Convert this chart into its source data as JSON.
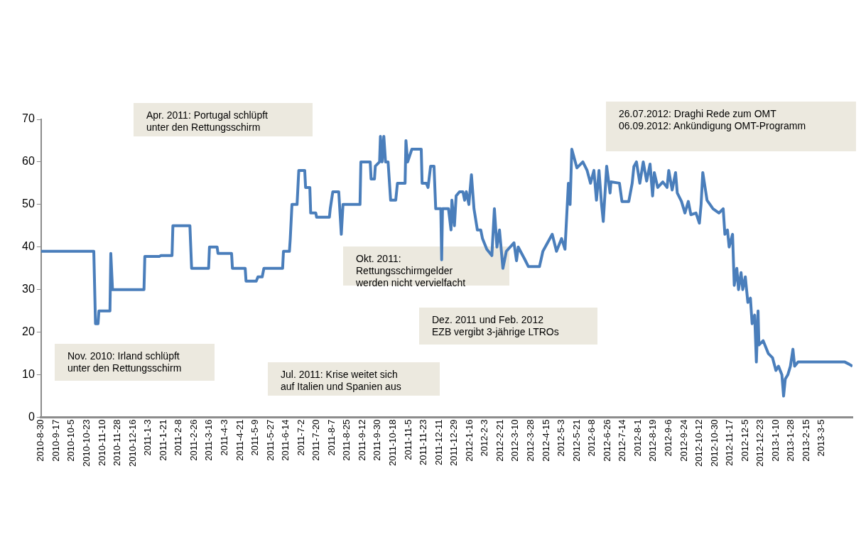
{
  "chart_data": {
    "type": "line",
    "color": "#4a7ebb",
    "x": [
      "2010-08-30",
      "2010-10-31",
      "2010-11-02",
      "2010-11-05",
      "2010-11-06",
      "2010-11-19",
      "2010-11-20",
      "2010-11-22",
      "2010-12-29",
      "2010-12-30",
      "2011-01-16",
      "2011-01-18",
      "2011-01-31",
      "2011-02-01",
      "2011-02-21",
      "2011-02-23",
      "2011-03-15",
      "2011-03-16",
      "2011-03-25",
      "2011-03-26",
      "2011-04-11",
      "2011-04-12",
      "2011-04-27",
      "2011-04-28",
      "2011-05-10",
      "2011-05-12",
      "2011-05-17",
      "2011-05-19",
      "2011-06-10",
      "2011-06-11",
      "2011-06-18",
      "2011-06-19",
      "2011-06-21",
      "2011-06-27",
      "2011-06-29",
      "2011-07-06",
      "2011-07-07",
      "2011-07-12",
      "2011-07-13",
      "2011-07-19",
      "2011-07-20",
      "2011-08-04",
      "2011-08-05",
      "2011-08-08",
      "2011-08-15",
      "2011-08-18",
      "2011-08-20",
      "2011-09-09",
      "2011-09-10",
      "2011-09-21",
      "2011-09-22",
      "2011-09-26",
      "2011-09-27",
      "2011-10-02",
      "2011-10-03",
      "2011-10-05",
      "2011-10-07",
      "2011-10-09",
      "2011-10-12",
      "2011-10-15",
      "2011-10-21",
      "2011-10-23",
      "2011-11-01",
      "2011-11-02",
      "2011-11-04",
      "2011-11-09",
      "2011-11-20",
      "2011-11-21",
      "2011-11-26",
      "2011-11-28",
      "2011-12-01",
      "2011-12-05",
      "2011-12-07",
      "2011-12-13",
      "2011-12-14",
      "2011-12-15",
      "2011-12-22",
      "2011-12-25",
      "2011-12-26",
      "2011-12-29",
      "2011-12-31",
      "2012-01-04",
      "2012-01-08",
      "2012-01-10",
      "2012-01-12",
      "2012-01-15",
      "2012-01-18",
      "2012-01-21",
      "2012-01-25",
      "2012-01-29",
      "2012-01-31",
      "2012-02-05",
      "2012-02-11",
      "2012-02-14",
      "2012-02-17",
      "2012-02-20",
      "2012-02-24",
      "2012-02-28",
      "2012-03-08",
      "2012-03-11",
      "2012-03-13",
      "2012-03-21",
      "2012-03-25",
      "2012-04-07",
      "2012-04-11",
      "2012-04-22",
      "2012-04-27",
      "2012-05-03",
      "2012-05-07",
      "2012-05-11",
      "2012-05-13",
      "2012-05-15",
      "2012-05-21",
      "2012-05-28",
      "2012-06-02",
      "2012-06-06",
      "2012-06-10",
      "2012-06-13",
      "2012-06-16",
      "2012-06-19",
      "2012-06-21",
      "2012-06-25",
      "2012-06-29",
      "2012-06-30",
      "2012-07-10",
      "2012-07-13",
      "2012-07-21",
      "2012-07-25",
      "2012-07-27",
      "2012-07-30",
      "2012-08-03",
      "2012-08-07",
      "2012-08-11",
      "2012-08-15",
      "2012-08-18",
      "2012-08-20",
      "2012-08-24",
      "2012-08-30",
      "2012-09-04",
      "2012-09-06",
      "2012-09-10",
      "2012-09-14",
      "2012-09-16",
      "2012-09-21",
      "2012-09-25",
      "2012-09-29",
      "2012-10-02",
      "2012-10-08",
      "2012-10-12",
      "2012-10-14",
      "2012-10-16",
      "2012-10-21",
      "2012-10-28",
      "2012-11-04",
      "2012-11-09",
      "2012-11-11",
      "2012-11-14",
      "2012-11-16",
      "2012-11-20",
      "2012-11-22",
      "2012-11-25",
      "2012-11-27",
      "2012-11-30",
      "2012-12-02",
      "2012-12-05",
      "2012-12-08",
      "2012-12-11",
      "2012-12-13",
      "2012-12-16",
      "2012-12-18",
      "2012-12-20",
      "2012-12-21",
      "2012-12-26",
      "2012-12-30",
      "2013-01-01",
      "2013-01-06",
      "2013-01-10",
      "2013-01-13",
      "2013-01-17",
      "2013-01-19",
      "2013-01-21",
      "2013-01-24",
      "2013-01-27",
      "2013-01-30",
      "2013-02-01",
      "2013-02-05",
      "2013-02-22",
      "2013-03-11",
      "2013-04-01",
      "2013-04-06",
      "2013-04-10"
    ],
    "values": [
      39,
      39,
      22,
      22,
      25,
      25,
      38.5,
      30,
      30,
      37.8,
      37.8,
      38,
      38,
      45,
      45,
      35,
      35,
      40,
      40,
      38.5,
      38.5,
      35,
      35,
      32,
      32,
      33,
      33,
      35,
      35,
      39,
      39,
      42,
      50,
      50,
      58,
      58,
      54,
      54,
      48,
      48,
      47,
      47,
      49,
      53,
      53,
      43,
      50,
      50,
      60,
      60,
      56,
      56,
      59,
      60,
      66,
      60,
      66,
      60,
      60,
      51,
      51,
      55,
      55,
      65,
      60,
      63,
      63,
      55,
      55,
      54,
      59,
      59,
      49,
      49,
      37,
      49,
      49,
      44,
      51,
      45,
      52,
      53,
      53,
      51,
      53,
      50,
      57,
      49,
      44,
      44,
      42,
      39.5,
      38,
      49,
      40,
      44,
      35,
      39,
      41,
      36.8,
      40,
      37,
      35.4,
      35.4,
      39,
      43,
      39,
      42,
      39.5,
      55,
      50,
      63,
      58.6,
      60,
      58,
      55,
      58,
      51,
      58,
      50,
      46,
      59,
      52.7,
      55.3,
      55,
      50.7,
      50.7,
      55,
      58.9,
      60,
      55,
      60,
      55.5,
      59.5,
      52,
      57.5,
      54,
      55.3,
      54,
      58,
      53.4,
      57.5,
      52.7,
      50.7,
      48,
      50.7,
      47.6,
      48,
      45.6,
      50,
      57.5,
      51,
      49,
      48,
      49,
      43,
      44,
      40,
      43,
      31,
      35,
      30,
      34,
      30,
      33,
      27,
      28,
      22,
      24,
      13,
      25,
      17,
      18,
      16,
      15,
      14,
      11,
      12,
      10,
      5,
      9,
      10,
      12,
      16,
      12,
      13,
      13,
      13,
      13,
      12.5,
      12
    ],
    "xlim": [
      "2010-08-30",
      "2013-04-10"
    ],
    "xticks": [
      {
        "value": "2010-08-30",
        "label": "2010-8-30"
      },
      {
        "value": "2010-09-17",
        "label": "2010-9-17"
      },
      {
        "value": "2010-10-05",
        "label": "2010-10-5"
      },
      {
        "value": "2010-10-23",
        "label": "2010-10-23"
      },
      {
        "value": "2010-11-10",
        "label": "2010-11-10"
      },
      {
        "value": "2010-11-28",
        "label": "2010-11-28"
      },
      {
        "value": "2010-12-16",
        "label": "2010-12-16"
      },
      {
        "value": "2011-01-03",
        "label": "2011-1-3"
      },
      {
        "value": "2011-01-21",
        "label": "2011-1-21"
      },
      {
        "value": "2011-02-08",
        "label": "2011-2-8"
      },
      {
        "value": "2011-02-26",
        "label": "2011-2-26"
      },
      {
        "value": "2011-03-16",
        "label": "2011-3-16"
      },
      {
        "value": "2011-04-03",
        "label": "2011-4-3"
      },
      {
        "value": "2011-04-21",
        "label": "2011-4-21"
      },
      {
        "value": "2011-05-09",
        "label": "2011-5-9"
      },
      {
        "value": "2011-05-27",
        "label": "2011-5-27"
      },
      {
        "value": "2011-06-14",
        "label": "2011-6-14"
      },
      {
        "value": "2011-07-02",
        "label": "2011-7-2"
      },
      {
        "value": "2011-07-20",
        "label": "2011-7-20"
      },
      {
        "value": "2011-08-07",
        "label": "2011-8-7"
      },
      {
        "value": "2011-08-25",
        "label": "2011-8-25"
      },
      {
        "value": "2011-09-12",
        "label": "2011-9-12"
      },
      {
        "value": "2011-09-30",
        "label": "2011-9-30"
      },
      {
        "value": "2011-10-18",
        "label": "2011-10-18"
      },
      {
        "value": "2011-11-05",
        "label": "2011-11-5"
      },
      {
        "value": "2011-11-23",
        "label": "2011-11-23"
      },
      {
        "value": "2011-12-11",
        "label": "2011-12-11"
      },
      {
        "value": "2011-12-29",
        "label": "2011-12-29"
      },
      {
        "value": "2012-01-16",
        "label": "2012-1-16"
      },
      {
        "value": "2012-02-03",
        "label": "2012-2-3"
      },
      {
        "value": "2012-02-21",
        "label": "2012-2-21"
      },
      {
        "value": "2012-03-10",
        "label": "2012-3-10"
      },
      {
        "value": "2012-03-28",
        "label": "2012-3-28"
      },
      {
        "value": "2012-04-15",
        "label": "2012-4-15"
      },
      {
        "value": "2012-05-03",
        "label": "2012-5-3"
      },
      {
        "value": "2012-05-21",
        "label": "2012-5-21"
      },
      {
        "value": "2012-06-08",
        "label": "2012-6-8"
      },
      {
        "value": "2012-06-26",
        "label": "2012-6-26"
      },
      {
        "value": "2012-07-14",
        "label": "2012-7-14"
      },
      {
        "value": "2012-08-01",
        "label": "2012-8-1"
      },
      {
        "value": "2012-08-19",
        "label": "2012-8-19"
      },
      {
        "value": "2012-09-06",
        "label": "2012-9-6"
      },
      {
        "value": "2012-09-24",
        "label": "2012-9-24"
      },
      {
        "value": "2012-10-12",
        "label": "2012-10-12"
      },
      {
        "value": "2012-10-30",
        "label": "2012-10-30"
      },
      {
        "value": "2012-11-17",
        "label": "2012-11-17"
      },
      {
        "value": "2012-12-05",
        "label": "2012-12-5"
      },
      {
        "value": "2012-12-23",
        "label": "2012-12-23"
      },
      {
        "value": "2013-01-10",
        "label": "2013-1-10"
      },
      {
        "value": "2013-01-28",
        "label": "2013-1-28"
      },
      {
        "value": "2013-02-15",
        "label": "2013-2-15"
      },
      {
        "value": "2013-03-05",
        "label": "2013-3-5"
      }
    ],
    "ylim": [
      0,
      70
    ],
    "yticks": [
      0,
      10,
      20,
      30,
      40,
      50,
      60,
      70
    ],
    "grid": false,
    "legend": false,
    "marker": "none",
    "line_style": "solid",
    "annotations": [
      "Apr. 2011: Portugal schlüpft\nunter den Rettungsschirm",
      "26.07.2012: Draghi Rede zum OMT\n06.09.2012: Ankündigung OMT-Programm",
      "Okt. 2011:\nRettungsschirmgelder\nwerden nicht vervielfacht",
      "Dez. 2011 und Feb. 2012\nEZB vergibt 3-jährige LTROs",
      "Nov. 2010: Irland schlüpft\nunter den Rettungsschirm",
      "Jul. 2011: Krise weitet sich\nauf Italien und Spanien aus"
    ]
  }
}
